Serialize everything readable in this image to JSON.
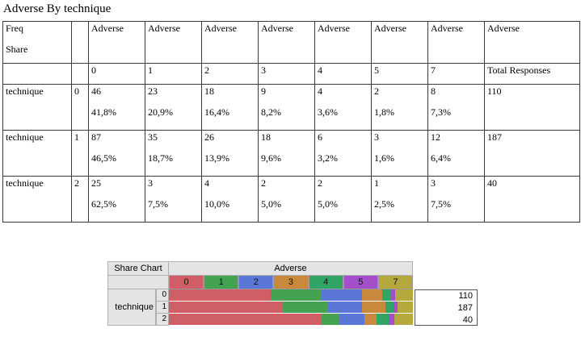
{
  "title": "Adverse By technique",
  "table": {
    "corner_top": "Freq",
    "corner_bottom": "Share",
    "group_header": "Adverse",
    "level_headers": [
      "0",
      "1",
      "2",
      "3",
      "4",
      "5",
      "7"
    ],
    "total_header": "Total Responses",
    "rows": [
      {
        "label": "technique",
        "level": "0",
        "cells": [
          {
            "count": "46",
            "share": "41,8%"
          },
          {
            "count": "23",
            "share": "20,9%"
          },
          {
            "count": "18",
            "share": "16,4%"
          },
          {
            "count": "9",
            "share": "8,2%"
          },
          {
            "count": "4",
            "share": "3,6%"
          },
          {
            "count": "2",
            "share": "1,8%"
          },
          {
            "count": "8",
            "share": "7,3%"
          }
        ],
        "total": "110"
      },
      {
        "label": "technique",
        "level": "1",
        "cells": [
          {
            "count": "87",
            "share": "46,5%"
          },
          {
            "count": "35",
            "share": "18,7%"
          },
          {
            "count": "26",
            "share": "13,9%"
          },
          {
            "count": "18",
            "share": "9,6%"
          },
          {
            "count": "6",
            "share": "3,2%"
          },
          {
            "count": "3",
            "share": "1,6%"
          },
          {
            "count": "12",
            "share": "6,4%"
          }
        ],
        "total": "187"
      },
      {
        "label": "technique",
        "level": "2",
        "cells": [
          {
            "count": "25",
            "share": "62,5%"
          },
          {
            "count": "3",
            "share": "7,5%"
          },
          {
            "count": "4",
            "share": "10,0%"
          },
          {
            "count": "2",
            "share": "5,0%"
          },
          {
            "count": "2",
            "share": "5,0%"
          },
          {
            "count": "1",
            "share": "2,5%"
          },
          {
            "count": "3",
            "share": "7,5%"
          }
        ],
        "total": "40"
      }
    ]
  },
  "chart": {
    "title": "Share Chart",
    "group_label": "Adverse",
    "axis_label": "technique"
  },
  "chart_data": {
    "type": "bar",
    "orientation": "horizontal",
    "stacking": "percent-share",
    "title": "Share Chart",
    "group_label": "Adverse",
    "category_label": "technique",
    "categories": [
      "0",
      "1",
      "2"
    ],
    "series": [
      {
        "name": "0",
        "color": "#cf5e66",
        "shares_pct": [
          41.8,
          46.5,
          62.5
        ],
        "counts": [
          46,
          87,
          25
        ]
      },
      {
        "name": "1",
        "color": "#43a351",
        "shares_pct": [
          20.9,
          18.7,
          7.5
        ],
        "counts": [
          23,
          35,
          3
        ]
      },
      {
        "name": "2",
        "color": "#5a76d6",
        "shares_pct": [
          16.4,
          13.9,
          10.0
        ],
        "counts": [
          18,
          26,
          4
        ]
      },
      {
        "name": "3",
        "color": "#c8893c",
        "shares_pct": [
          8.2,
          9.6,
          5.0
        ],
        "counts": [
          9,
          18,
          2
        ]
      },
      {
        "name": "4",
        "color": "#30a565",
        "shares_pct": [
          3.6,
          3.2,
          5.0
        ],
        "counts": [
          4,
          6,
          2
        ]
      },
      {
        "name": "5",
        "color": "#a34fc9",
        "shares_pct": [
          1.8,
          1.6,
          2.5
        ],
        "counts": [
          2,
          3,
          1
        ]
      },
      {
        "name": "7",
        "color": "#b5a83d",
        "shares_pct": [
          7.3,
          6.4,
          7.5
        ],
        "counts": [
          8,
          12,
          3
        ]
      }
    ],
    "totals": [
      110,
      187,
      40
    ],
    "xlim": [
      0,
      100
    ],
    "legend_position": "top",
    "grid": false
  }
}
